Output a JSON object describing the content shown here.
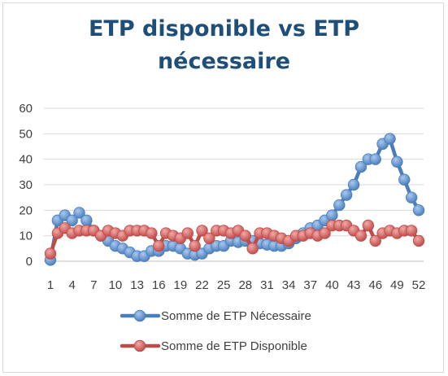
{
  "chart_data": {
    "type": "line",
    "title": "ETP disponible vs ETP nécessaire",
    "xlabel": "",
    "ylabel": "",
    "x": [
      1,
      2,
      3,
      4,
      5,
      6,
      7,
      8,
      9,
      10,
      11,
      12,
      13,
      14,
      15,
      16,
      17,
      18,
      19,
      20,
      21,
      22,
      23,
      24,
      25,
      26,
      27,
      28,
      29,
      30,
      31,
      32,
      33,
      34,
      35,
      36,
      37,
      38,
      39,
      40,
      41,
      42,
      43,
      44,
      45,
      46,
      47,
      48,
      49,
      50,
      51,
      52
    ],
    "x_tick_labels": [
      "1",
      "4",
      "7",
      "10",
      "13",
      "16",
      "19",
      "22",
      "25",
      "28",
      "31",
      "34",
      "37",
      "40",
      "43",
      "46",
      "49",
      "52"
    ],
    "ylim": [
      0,
      60
    ],
    "y_ticks": [
      0,
      10,
      20,
      30,
      40,
      50,
      60
    ],
    "grid": "horizontal",
    "legend_position": "bottom",
    "series": [
      {
        "name": "Somme de ETP Nécessaire",
        "color": "#4a7ebb",
        "values": [
          0.5,
          16,
          18,
          16,
          19,
          16,
          12,
          10,
          8,
          6,
          5,
          3.5,
          2,
          2,
          4,
          4,
          6,
          6,
          5,
          3,
          2.5,
          3,
          5,
          6,
          6,
          8,
          7.5,
          8,
          8,
          7,
          6.5,
          6,
          6,
          7,
          9,
          11,
          13,
          14,
          16,
          18,
          22,
          26,
          30,
          37,
          40,
          40,
          46,
          48,
          39,
          32,
          25,
          20
        ]
      },
      {
        "name": "Somme de ETP Disponible",
        "color": "#be4b48",
        "values": [
          3,
          11,
          13,
          11,
          12,
          12,
          12,
          10,
          12,
          11,
          10,
          12,
          12,
          12,
          11,
          6,
          11,
          10,
          9,
          11,
          6,
          12,
          9,
          12,
          12,
          11,
          12,
          10,
          5,
          11,
          11,
          10,
          9,
          8,
          10,
          10,
          11,
          10,
          11,
          14,
          14,
          14,
          12,
          10,
          14,
          8,
          11,
          12,
          11,
          12,
          12,
          8
        ]
      }
    ]
  }
}
